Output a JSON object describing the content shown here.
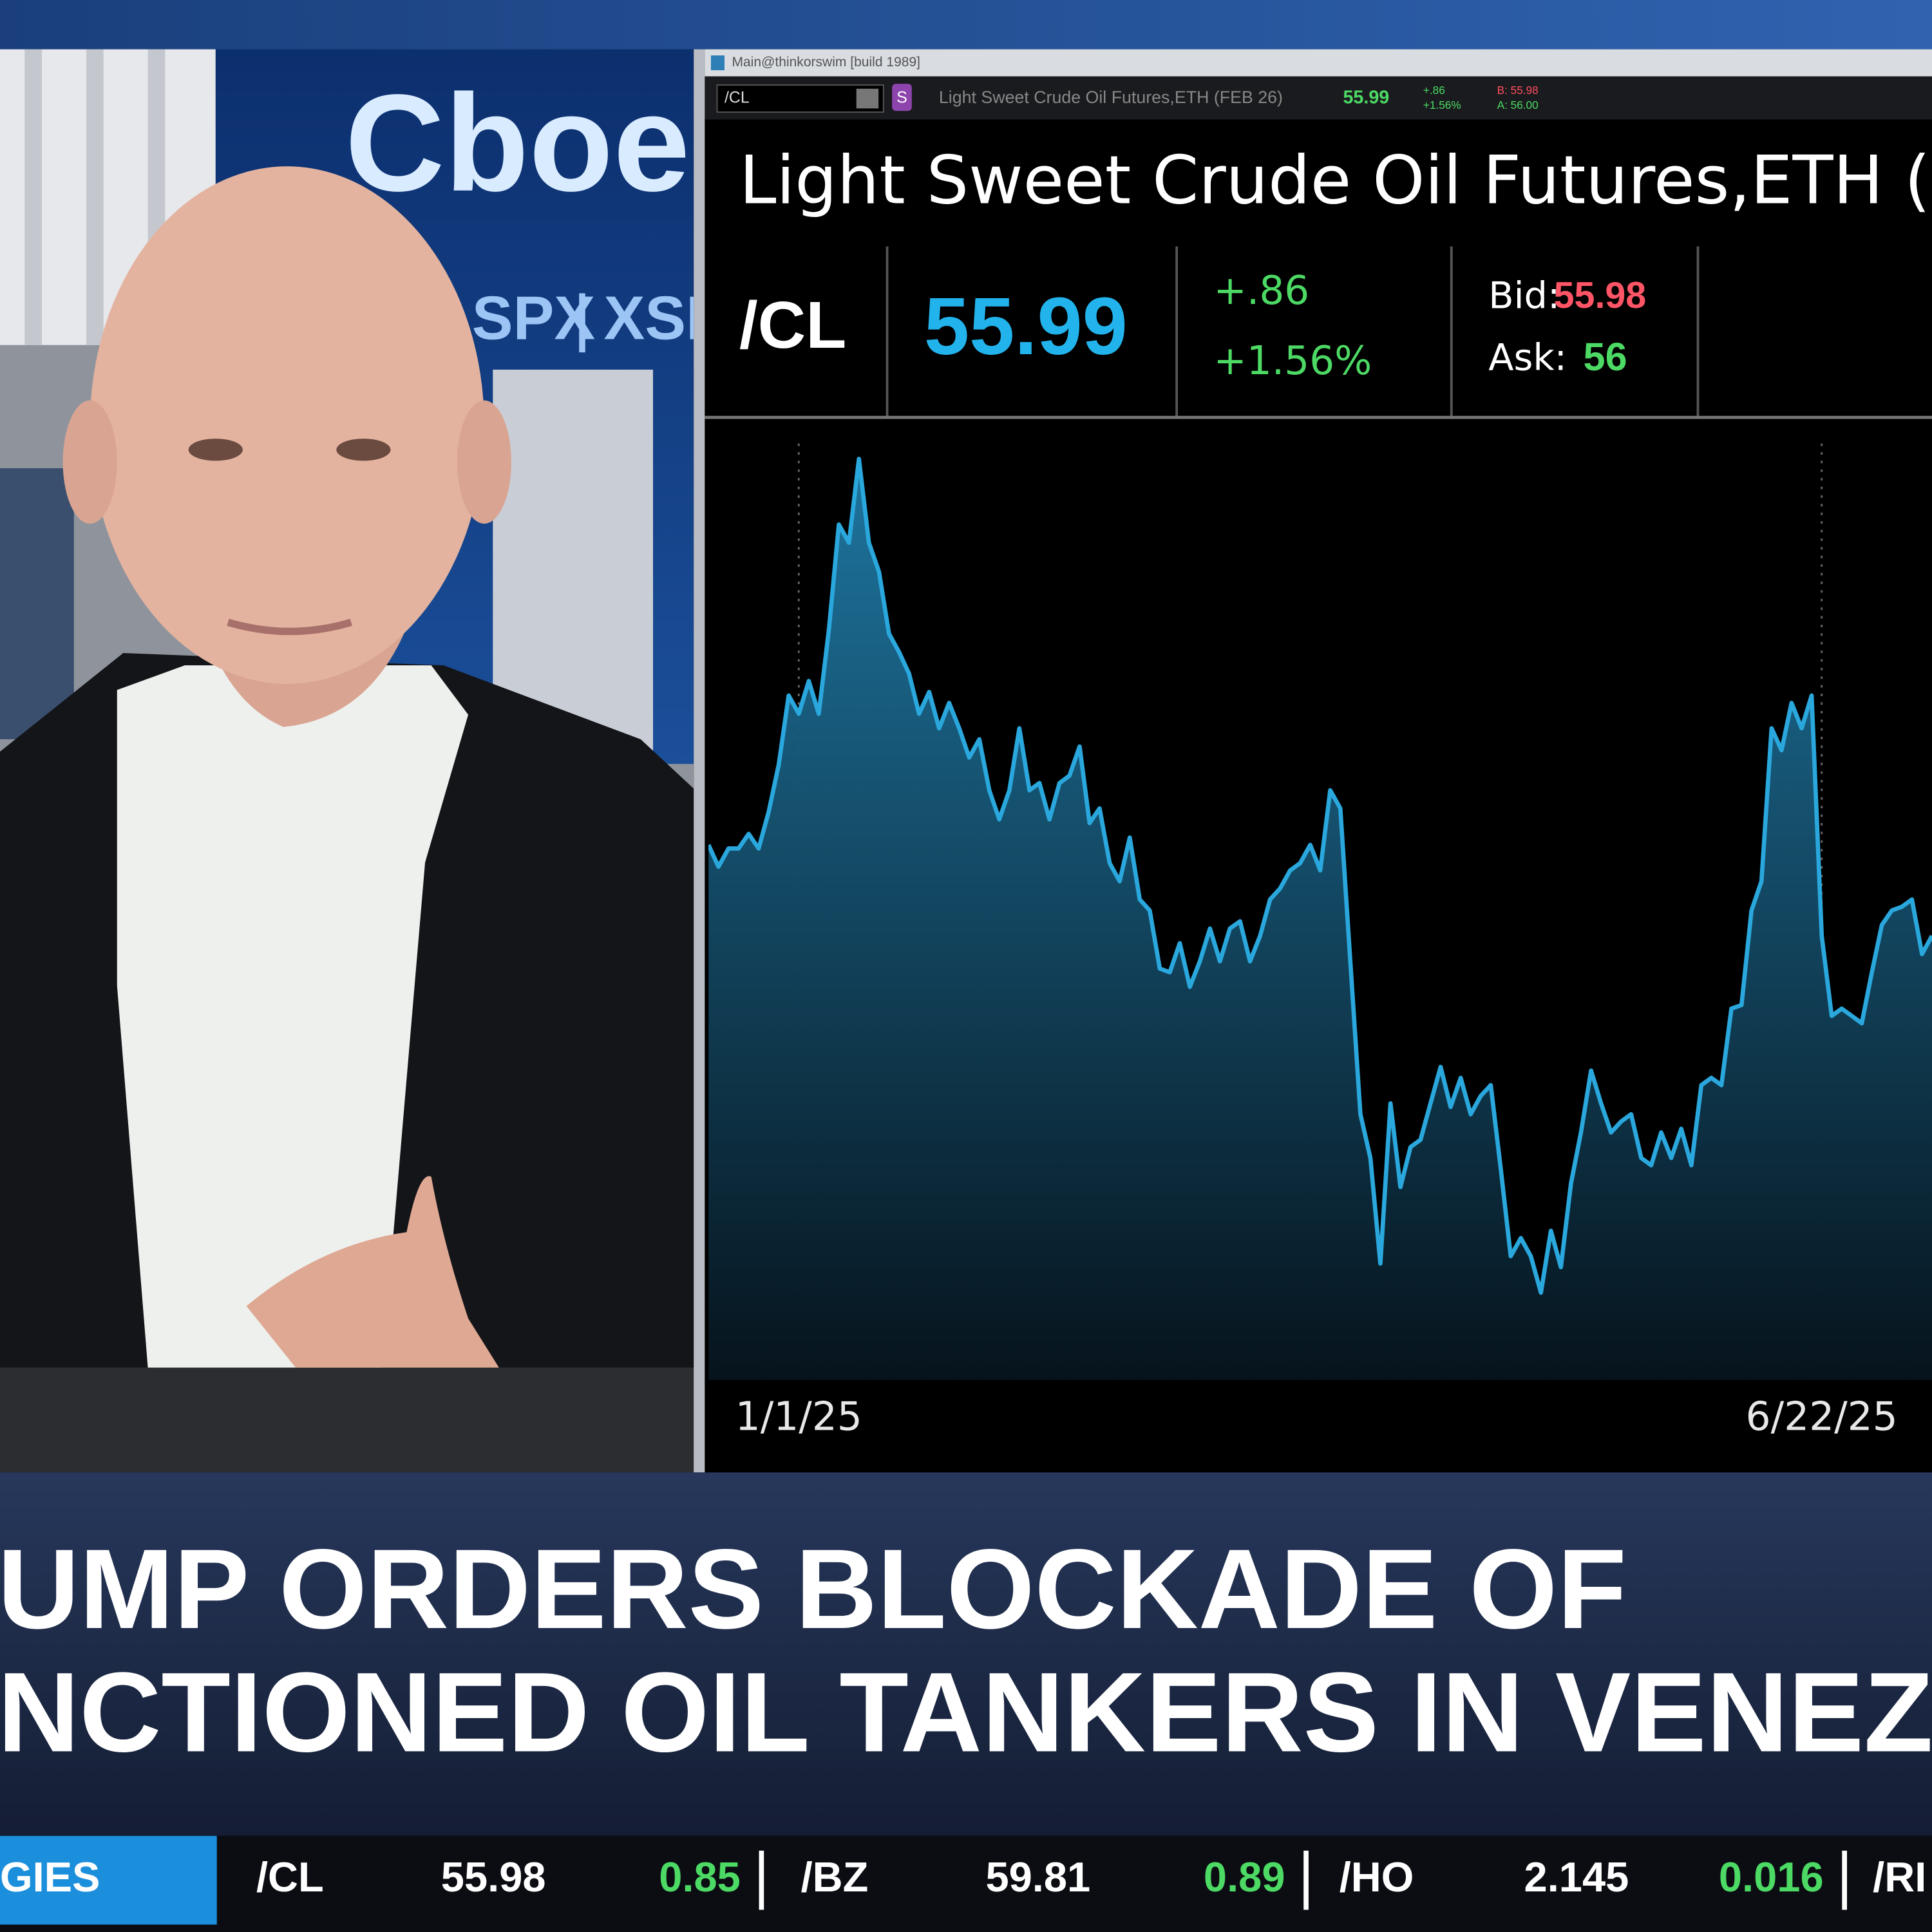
{
  "logo": {
    "brand": "Cboe",
    "products": [
      "SPX",
      "XSP"
    ]
  },
  "window": {
    "title": "Main@thinkorswim [build 1989]",
    "symbol": "/CL",
    "badge": "S",
    "description": "Light Sweet Crude Oil Futures,ETH (FEB 26)",
    "last": "55.99",
    "change": "+.86",
    "change_pct": "+1.56%",
    "bid": "B: 55.98",
    "ask": "A: 56.00"
  },
  "quote": {
    "title": "Light Sweet Crude Oil Futures,ETH (FE",
    "symbol": "/CL",
    "last": "55.99",
    "change": "+.86",
    "change_pct": "+1.56%",
    "bid_label": "Bid:",
    "bid": "55.98",
    "ask_label": "Ask:",
    "ask": "56"
  },
  "chart_data": {
    "type": "area",
    "color": "#2aa7dc",
    "values": [
      69.4,
      68.8,
      69.3,
      69.3,
      69.7,
      69.3,
      70.3,
      71.6,
      73.5,
      73.0,
      73.9,
      73.0,
      75.3,
      78.2,
      77.7,
      80.0,
      77.7,
      76.9,
      75.2,
      74.7,
      74.1,
      73.0,
      73.6,
      72.6,
      73.3,
      72.6,
      71.8,
      72.3,
      70.9,
      70.1,
      70.9,
      72.6,
      70.9,
      71.1,
      70.1,
      71.1,
      71.3,
      72.1,
      70.0,
      70.4,
      68.9,
      68.4,
      69.6,
      67.9,
      67.6,
      66.0,
      65.9,
      66.7,
      65.5,
      66.2,
      67.1,
      66.2,
      67.1,
      67.3,
      66.2,
      66.9,
      67.9,
      68.2,
      68.7,
      68.9,
      69.4,
      68.7,
      70.9,
      70.4,
      66.2,
      62.0,
      60.8,
      57.9,
      62.3,
      60.0,
      61.1,
      61.3,
      62.3,
      63.3,
      62.2,
      63.0,
      62.0,
      62.5,
      62.8,
      60.5,
      58.1,
      58.6,
      58.1,
      57.1,
      58.8,
      57.8,
      60.1,
      61.5,
      63.2,
      62.3,
      61.5,
      61.8,
      62.0,
      60.8,
      60.6,
      61.5,
      60.8,
      61.6,
      60.6,
      62.8,
      63.0,
      62.8,
      64.9,
      65.0,
      67.6,
      68.4,
      72.6,
      72.0,
      73.3,
      72.6,
      73.5,
      66.9,
      64.7,
      64.9,
      64.7,
      64.5,
      65.9,
      67.2,
      67.6,
      67.7,
      67.9,
      66.4,
      66.9
    ],
    "ylim": [
      54.7,
      81.1
    ],
    "xticks": [
      {
        "value": 9,
        "label": "1/1/25"
      },
      {
        "value": 111,
        "label": "6/22/25"
      }
    ]
  },
  "headline": {
    "lines": [
      "UMP ORDERS BLOCKADE OF",
      "NCTIONED OIL TANKERS IN VENEZUEL"
    ]
  },
  "ticker": {
    "section": "GIES",
    "items": [
      {
        "symbol": "/CL",
        "price": "55.98",
        "change": "0.85"
      },
      {
        "symbol": "/BZ",
        "price": "59.81",
        "change": "0.89"
      },
      {
        "symbol": "/HO",
        "price": "2.145",
        "change": "0.016"
      },
      {
        "symbol": "/RI"
      }
    ]
  }
}
